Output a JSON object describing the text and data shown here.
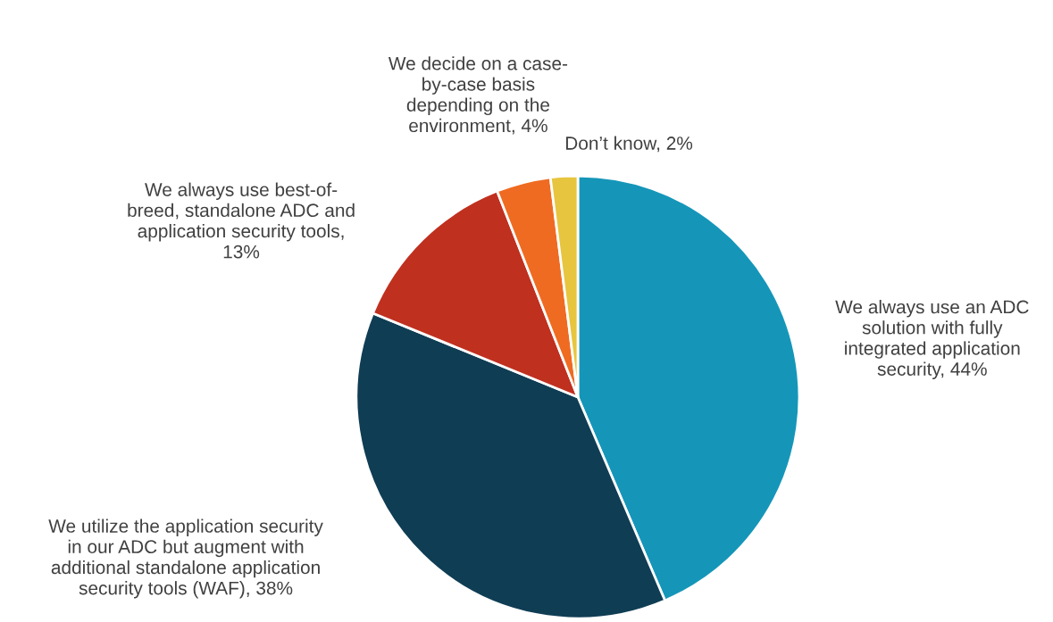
{
  "chart_data": {
    "type": "pie",
    "categories": [
      "We always use an ADC\nsolution with fully\nintegrated application\nsecurity, 44%",
      "We utilize the application security\nin our ADC but augment with\nadditional standalone application\nsecurity tools (WAF), 38%",
      "We always use best-of-\nbreed, standalone ADC and\napplication security tools,\n13%",
      "We decide on a case-\nby-case basis\ndepending on the\nenvironment, 4%",
      "Don’t know, 2%"
    ],
    "values": [
      44,
      38,
      13,
      4,
      2
    ],
    "colors": [
      "#1596b9",
      "#0f3d54",
      "#c0301f",
      "#ef6b22",
      "#e8c53f"
    ]
  }
}
